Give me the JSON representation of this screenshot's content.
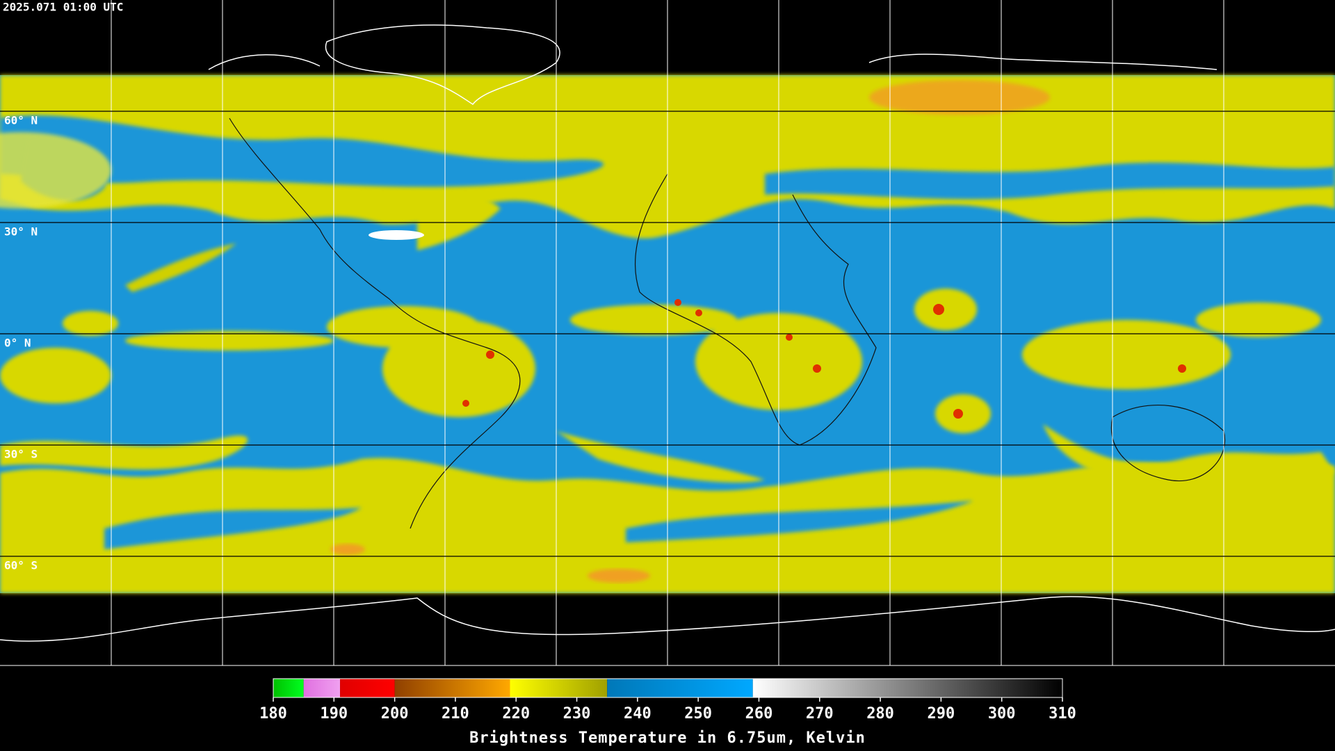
{
  "timestamp": "2025.071 01:00 UTC",
  "latitudes": [
    {
      "value": 60,
      "label": "60° N"
    },
    {
      "value": 30,
      "label": "30° N"
    },
    {
      "value": 0,
      "label": "0° N"
    },
    {
      "value": -30,
      "label": "30° S"
    },
    {
      "value": -60,
      "label": "60° S"
    }
  ],
  "colorbar": {
    "title": "Brightness Temperature in 6.75um, Kelvin",
    "range": [
      180,
      310
    ],
    "ticks": [
      180,
      190,
      200,
      210,
      220,
      230,
      240,
      250,
      260,
      270,
      280,
      290,
      300,
      310
    ],
    "segments": [
      {
        "from": 180,
        "to": 185,
        "colors": [
          "#00c000",
          "#00ff20"
        ]
      },
      {
        "from": 185,
        "to": 191,
        "colors": [
          "#e070e0",
          "#f0a0f0"
        ]
      },
      {
        "from": 191,
        "to": 200,
        "colors": [
          "#e00000",
          "#ff0000"
        ]
      },
      {
        "from": 200,
        "to": 219,
        "colors": [
          "#904000",
          "#ffa800"
        ]
      },
      {
        "from": 219,
        "to": 235,
        "colors": [
          "#ffff00",
          "#a0a000"
        ]
      },
      {
        "from": 235,
        "to": 259,
        "colors": [
          "#0078b8",
          "#00a8ff"
        ]
      },
      {
        "from": 259,
        "to": 310,
        "colors": [
          "#ffffff",
          "#000000"
        ]
      }
    ]
  }
}
